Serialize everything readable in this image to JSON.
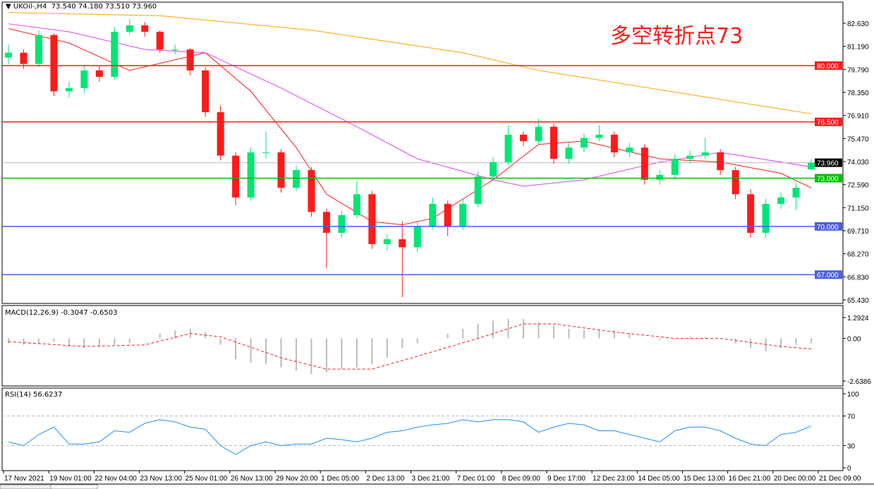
{
  "header": {
    "symbol": "UKOil-,H4",
    "ohlc": "73.540 74.180 73.510 73.960"
  },
  "annotation": "多空转折点73",
  "chart_data": [
    {
      "type": "candlestick",
      "ylim": [
        65.43,
        82.63
      ],
      "y_ticks": [
        "82.630",
        "81.190",
        "79.790",
        "78.350",
        "76.910",
        "75.470",
        "74.030",
        "72.590",
        "71.150",
        "69.710",
        "68.270",
        "66.830",
        "65.430"
      ],
      "x_ticks": [
        "17 Nov 2021",
        "19 Nov 01:00",
        "22 Nov 04:00",
        "23 Nov 13:00",
        "25 Nov 01:00",
        "26 Nov 13:00",
        "29 Nov 20:00",
        "1 Dec 05:00",
        "2 Dec 13:00",
        "3 Dec 21:00",
        "7 Dec 01:00",
        "8 Dec 09:00",
        "9 Dec 17:00",
        "12 Dec 23:00",
        "14 Dec 05:00",
        "15 Dec 13:00",
        "16 Dec 21:00",
        "20 Dec 00:00",
        "21 Dec 09:00"
      ],
      "colors": {
        "bull": "#00e676",
        "bear": "#ff1a1a"
      },
      "candles": [
        [
          80.5,
          81.3,
          80.1,
          80.8
        ],
        [
          80.8,
          81.0,
          79.8,
          80.1
        ],
        [
          80.1,
          82.2,
          79.9,
          81.9
        ],
        [
          81.9,
          82.0,
          78.1,
          78.4
        ],
        [
          78.4,
          79.0,
          78.0,
          78.6
        ],
        [
          78.6,
          80.0,
          78.3,
          79.7
        ],
        [
          79.7,
          80.0,
          79.0,
          79.3
        ],
        [
          79.3,
          82.4,
          79.1,
          82.1
        ],
        [
          82.1,
          82.9,
          81.9,
          82.5
        ],
        [
          82.5,
          82.7,
          81.8,
          82.1
        ],
        [
          82.1,
          82.2,
          80.8,
          81.0
        ],
        [
          81.0,
          81.3,
          80.7,
          81.0
        ],
        [
          81.0,
          81.1,
          79.4,
          79.7
        ],
        [
          79.7,
          79.9,
          76.8,
          77.1
        ],
        [
          77.1,
          77.5,
          74.1,
          74.4
        ],
        [
          74.4,
          74.6,
          71.3,
          71.8
        ],
        [
          71.8,
          74.9,
          71.6,
          74.6
        ],
        [
          74.6,
          75.9,
          74.2,
          74.6
        ],
        [
          74.6,
          74.8,
          72.1,
          72.4
        ],
        [
          72.4,
          73.8,
          72.2,
          73.5
        ],
        [
          73.5,
          73.7,
          70.6,
          70.9
        ],
        [
          70.9,
          71.1,
          67.4,
          69.6
        ],
        [
          69.6,
          71.0,
          69.3,
          70.7
        ],
        [
          70.7,
          72.8,
          70.5,
          72.0
        ],
        [
          72.0,
          72.2,
          68.6,
          68.9
        ],
        [
          68.9,
          69.5,
          68.5,
          69.2
        ],
        [
          69.2,
          70.3,
          65.6,
          68.7
        ],
        [
          68.7,
          70.3,
          68.4,
          70.0
        ],
        [
          70.0,
          71.8,
          69.8,
          71.4
        ],
        [
          71.4,
          71.6,
          69.4,
          70.0
        ],
        [
          70.0,
          71.7,
          69.8,
          71.4
        ],
        [
          71.4,
          73.4,
          71.2,
          73.1
        ],
        [
          73.1,
          74.3,
          72.9,
          74.0
        ],
        [
          74.0,
          76.3,
          73.8,
          75.7
        ],
        [
          75.7,
          75.9,
          75.0,
          75.3
        ],
        [
          75.3,
          76.7,
          75.1,
          76.2
        ],
        [
          76.2,
          76.4,
          73.9,
          74.2
        ],
        [
          74.2,
          75.2,
          73.9,
          74.9
        ],
        [
          74.9,
          75.8,
          74.6,
          75.5
        ],
        [
          75.5,
          76.3,
          75.3,
          75.7
        ],
        [
          75.7,
          75.9,
          74.3,
          74.6
        ],
        [
          74.6,
          75.2,
          74.3,
          74.9
        ],
        [
          74.9,
          75.1,
          72.6,
          72.9
        ],
        [
          72.9,
          73.5,
          72.6,
          73.2
        ],
        [
          73.2,
          74.5,
          72.9,
          74.2
        ],
        [
          74.2,
          74.7,
          73.9,
          74.4
        ],
        [
          74.4,
          75.5,
          74.2,
          74.6
        ],
        [
          74.6,
          74.8,
          73.2,
          73.5
        ],
        [
          73.5,
          73.7,
          71.7,
          72.0
        ],
        [
          72.0,
          72.3,
          69.3,
          69.6
        ],
        [
          69.6,
          71.7,
          69.3,
          71.4
        ],
        [
          71.4,
          72.1,
          71.1,
          71.8
        ],
        [
          71.8,
          72.7,
          71.0,
          72.4
        ],
        [
          73.54,
          74.18,
          73.51,
          73.96
        ]
      ],
      "moving_averages": [
        {
          "color": "#ff1a1a",
          "points": [
            [
              0,
              82.3
            ],
            [
              4,
              81.4
            ],
            [
              8,
              79.7
            ],
            [
              13,
              80.8
            ],
            [
              16,
              78.4
            ],
            [
              19,
              74.9
            ],
            [
              21,
              72.0
            ],
            [
              24,
              70.3
            ],
            [
              26,
              70.1
            ],
            [
              28,
              70.5
            ],
            [
              32,
              72.9
            ],
            [
              35,
              75.1
            ],
            [
              38,
              75.3
            ],
            [
              43,
              74.2
            ],
            [
              47,
              74.0
            ],
            [
              51,
              73.3
            ],
            [
              53,
              72.4
            ]
          ]
        },
        {
          "color": "#e040fb",
          "points": [
            [
              0,
              82.6
            ],
            [
              4,
              82.1
            ],
            [
              9,
              81.0
            ],
            [
              13,
              80.8
            ],
            [
              18,
              78.6
            ],
            [
              23,
              76.2
            ],
            [
              27,
              74.2
            ],
            [
              32,
              72.9
            ],
            [
              34,
              72.5
            ],
            [
              38,
              72.9
            ],
            [
              43,
              74.0
            ],
            [
              47,
              74.6
            ],
            [
              53,
              73.7
            ]
          ]
        },
        {
          "color": "#ffa500",
          "points": [
            [
              0,
              83.3
            ],
            [
              10,
              83.1
            ],
            [
              20,
              82.2
            ],
            [
              30,
              80.8
            ],
            [
              35,
              79.7
            ],
            [
              45,
              78.2
            ],
            [
              53,
              77.0
            ]
          ]
        }
      ],
      "horizontal_lines": [
        {
          "value": 80.0,
          "label": "80.000",
          "color": "#ff1a1a"
        },
        {
          "value": 76.5,
          "label": "76.500",
          "color": "#ff1a1a"
        },
        {
          "value": 73.0,
          "label": "73.000",
          "color": "#00c000"
        },
        {
          "value": 70.0,
          "label": "70.000",
          "color": "#4a5fe0"
        },
        {
          "value": 67.0,
          "label": "67.000",
          "color": "#4a5fe0"
        }
      ],
      "current_price": {
        "value": 73.96,
        "label": "73.960"
      }
    },
    {
      "type": "bar",
      "title": "MACD(12,26,9) -0.3047 -0.6503",
      "ylim": [
        -2.6386,
        1.2924
      ],
      "y_ticks": [
        "1.2924",
        "0.00",
        "-2.6386"
      ],
      "histogram": [
        -0.3,
        -0.4,
        -0.3,
        -0.2,
        -0.5,
        -0.6,
        -0.5,
        -0.4,
        -0.3,
        0.0,
        0.3,
        0.5,
        0.6,
        0.4,
        -0.4,
        -1.3,
        -1.5,
        -1.6,
        -1.8,
        -2.0,
        -2.2,
        -2.1,
        -1.9,
        -1.8,
        -1.6,
        -1.2,
        -0.6,
        -0.3,
        0.0,
        0.3,
        0.6,
        0.9,
        1.1,
        1.2,
        1.2,
        1.0,
        0.8,
        0.6,
        0.5,
        0.5,
        0.5,
        0.3,
        0.0,
        -0.1,
        0.0,
        0.1,
        0.1,
        0.0,
        -0.3,
        -0.6,
        -0.8,
        -0.6,
        -0.4,
        -0.3047
      ],
      "signal": [
        [
          0,
          -0.2
        ],
        [
          5,
          -0.5
        ],
        [
          9,
          -0.4
        ],
        [
          12,
          0.3
        ],
        [
          14,
          0.1
        ],
        [
          18,
          -1.2
        ],
        [
          21,
          -1.9
        ],
        [
          24,
          -1.9
        ],
        [
          27,
          -1.1
        ],
        [
          31,
          0.0
        ],
        [
          34,
          0.9
        ],
        [
          36,
          0.9
        ],
        [
          40,
          0.4
        ],
        [
          44,
          0.0
        ],
        [
          47,
          0.0
        ],
        [
          51,
          -0.5
        ],
        [
          53,
          -0.6503
        ]
      ]
    },
    {
      "type": "line",
      "title": "RSI(14) 56.6237",
      "ylim": [
        0,
        100
      ],
      "y_ticks": [
        "100",
        "70",
        "30",
        "0"
      ],
      "levels": [
        70,
        30
      ],
      "color": "#1e90ff",
      "values": [
        35,
        30,
        45,
        55,
        32,
        32,
        35,
        50,
        48,
        60,
        65,
        62,
        55,
        52,
        30,
        18,
        30,
        35,
        30,
        32,
        32,
        40,
        38,
        35,
        40,
        48,
        50,
        55,
        58,
        60,
        65,
        62,
        65,
        65,
        62,
        48,
        55,
        60,
        58,
        50,
        50,
        45,
        40,
        35,
        50,
        55,
        55,
        50,
        40,
        32,
        30,
        45,
        48,
        56.6
      ]
    }
  ]
}
